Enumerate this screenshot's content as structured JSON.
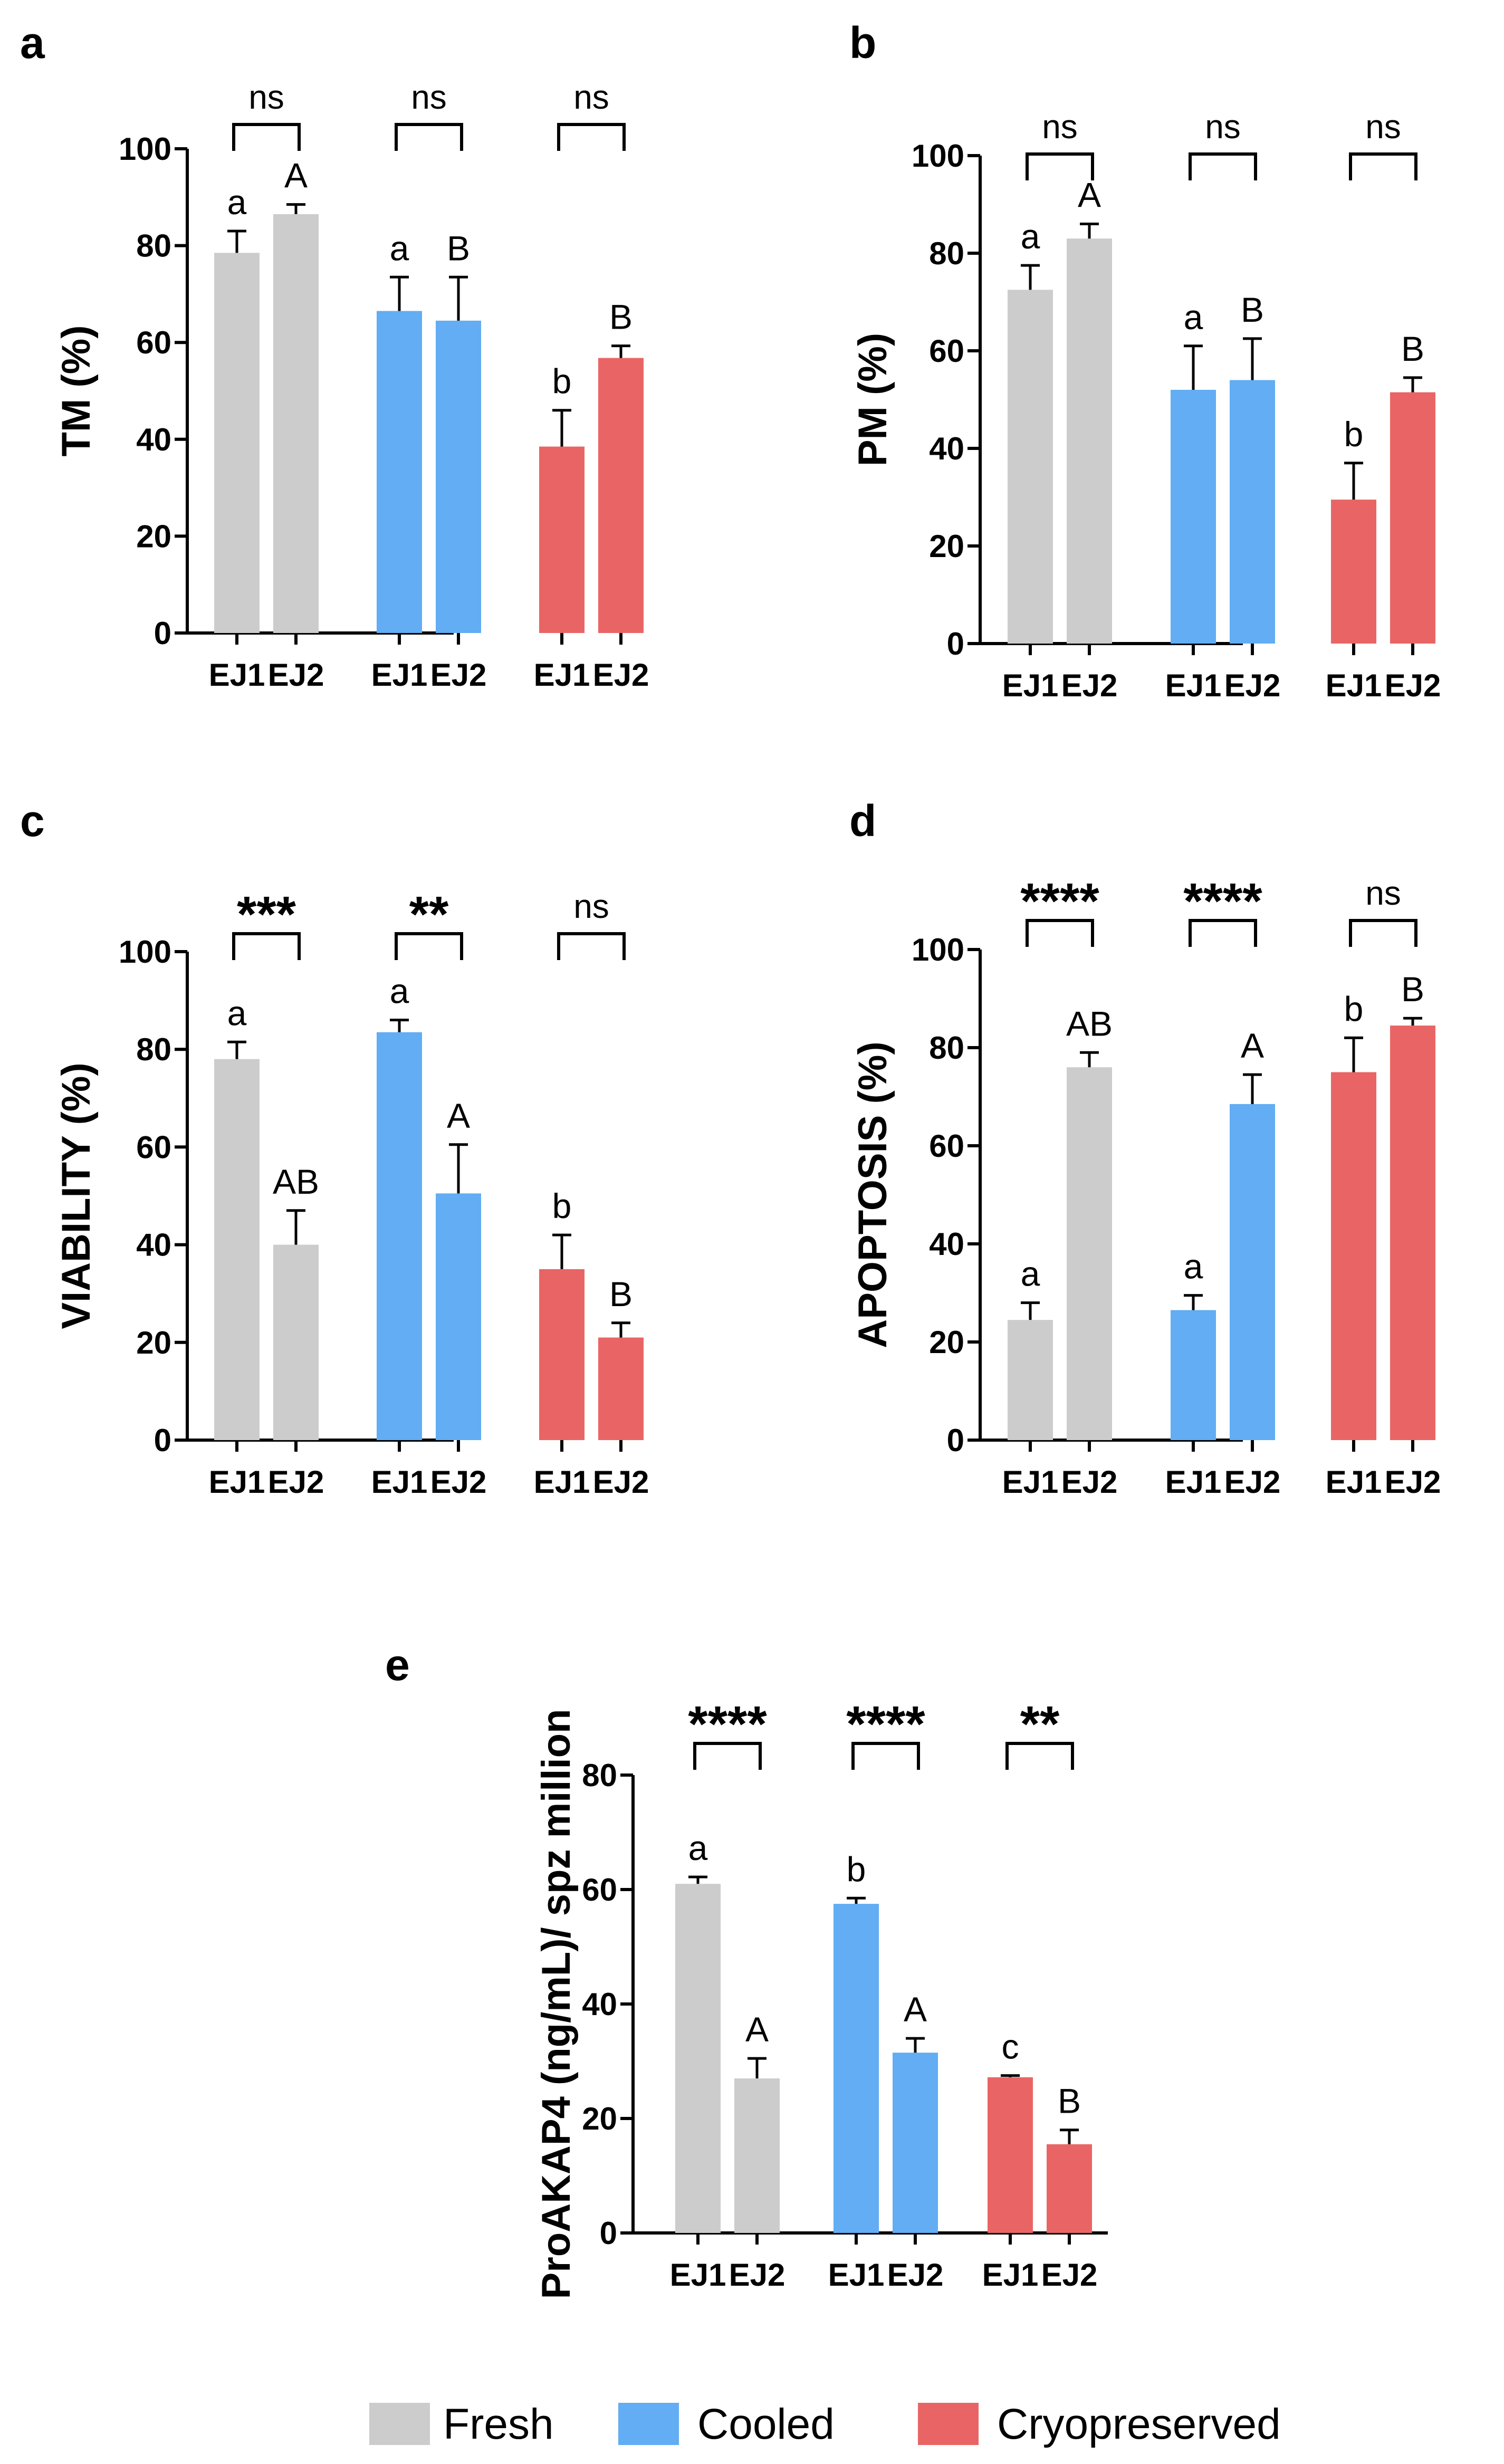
{
  "figure": {
    "colors": {
      "Fresh": "#cccccc",
      "Cooled": "#62adf3",
      "Cryopreserved": "#e96565"
    },
    "legend": [
      "Fresh",
      "Cooled",
      "Cryopreserved"
    ]
  },
  "chart_data": [
    {
      "panel": "a",
      "type": "bar",
      "ylabel": "TM (%)",
      "ylim": [
        0,
        100
      ],
      "yticks": [
        "0",
        "20",
        "40",
        "60",
        "80",
        "100"
      ],
      "x_tick_labels": [
        "EJ1",
        "EJ2",
        "EJ1",
        "EJ2",
        "EJ1",
        "EJ2"
      ],
      "groups": [
        "Fresh",
        "Cooled",
        "Cryopreserved"
      ],
      "series": [
        {
          "name": "EJ1",
          "values": [
            78.5,
            66.5,
            38.5
          ],
          "errors": [
            4.5,
            7,
            7.5
          ],
          "letters": [
            "a",
            "a",
            "b"
          ]
        },
        {
          "name": "EJ2",
          "values": [
            86.5,
            64.5,
            56.8
          ],
          "errors": [
            2,
            9,
            2.5
          ],
          "letters": [
            "A",
            "B",
            "B"
          ]
        }
      ],
      "significance": [
        "ns",
        "ns",
        "ns"
      ]
    },
    {
      "panel": "b",
      "type": "bar",
      "ylabel": "PM (%)",
      "ylim": [
        0,
        100
      ],
      "yticks": [
        "0",
        "20",
        "40",
        "60",
        "80",
        "100"
      ],
      "x_tick_labels": [
        "EJ1",
        "EJ2",
        "EJ1",
        "EJ2",
        "EJ1",
        "EJ2"
      ],
      "groups": [
        "Fresh",
        "Cooled",
        "Cryopreserved"
      ],
      "series": [
        {
          "name": "EJ1",
          "values": [
            72.5,
            52,
            29.5
          ],
          "errors": [
            5,
            9,
            7.5
          ],
          "letters": [
            "a",
            "a",
            "b"
          ]
        },
        {
          "name": "EJ2",
          "values": [
            83,
            54,
            51.5
          ],
          "errors": [
            3,
            8.5,
            3
          ],
          "letters": [
            "A",
            "B",
            "B"
          ]
        }
      ],
      "significance": [
        "ns",
        "ns",
        "ns"
      ]
    },
    {
      "panel": "c",
      "type": "bar",
      "ylabel": "VIABILITY (%)",
      "ylim": [
        0,
        100
      ],
      "yticks": [
        "0",
        "20",
        "40",
        "60",
        "80",
        "100"
      ],
      "x_tick_labels": [
        "EJ1",
        "EJ2",
        "EJ1",
        "EJ2",
        "EJ1",
        "EJ2"
      ],
      "groups": [
        "Fresh",
        "Cooled",
        "Cryopreserved"
      ],
      "series": [
        {
          "name": "EJ1",
          "values": [
            78,
            83.5,
            35
          ],
          "errors": [
            3.5,
            2.5,
            7
          ],
          "letters": [
            "a",
            "a",
            "b"
          ]
        },
        {
          "name": "EJ2",
          "values": [
            40,
            50.5,
            21
          ],
          "errors": [
            7,
            10,
            3
          ],
          "letters": [
            "AB",
            "A",
            "B"
          ]
        }
      ],
      "significance": [
        "***",
        "**",
        "ns"
      ]
    },
    {
      "panel": "d",
      "type": "bar",
      "ylabel": "APOPTOSIS (%)",
      "ylim": [
        0,
        100
      ],
      "yticks": [
        "0",
        "20",
        "40",
        "60",
        "80",
        "100"
      ],
      "x_tick_labels": [
        "EJ1",
        "EJ2",
        "EJ1",
        "EJ2",
        "EJ1",
        "EJ2"
      ],
      "groups": [
        "Fresh",
        "Cooled",
        "Cryopreserved"
      ],
      "series": [
        {
          "name": "EJ1",
          "values": [
            24.5,
            26.5,
            75
          ],
          "errors": [
            3.5,
            3,
            7
          ],
          "letters": [
            "a",
            "a",
            "b"
          ]
        },
        {
          "name": "EJ2",
          "values": [
            76,
            68.5,
            84.5
          ],
          "errors": [
            3,
            6,
            1.5
          ],
          "letters": [
            "AB",
            "A",
            "B"
          ]
        }
      ],
      "significance": [
        "****",
        "****",
        "ns"
      ]
    },
    {
      "panel": "e",
      "type": "bar",
      "ylabel": "ProAKAP4 (ng/mL)/ spz million",
      "ylim": [
        0,
        80
      ],
      "yticks": [
        "0",
        "20",
        "40",
        "60",
        "80"
      ],
      "x_tick_labels": [
        "EJ1",
        "EJ2",
        "EJ1",
        "EJ2",
        "EJ1",
        "EJ2"
      ],
      "groups": [
        "Fresh",
        "Cooled",
        "Cryopreserved"
      ],
      "series": [
        {
          "name": "EJ1",
          "values": [
            61,
            57.5,
            27.2
          ],
          "errors": [
            1.2,
            1,
            0.3
          ],
          "letters": [
            "a",
            "b",
            "c"
          ]
        },
        {
          "name": "EJ2",
          "values": [
            27,
            31.5,
            15.5
          ],
          "errors": [
            3.5,
            2.5,
            2.5
          ],
          "letters": [
            "A",
            "A",
            "B"
          ]
        }
      ],
      "significance": [
        "****",
        "****",
        "**"
      ]
    }
  ]
}
